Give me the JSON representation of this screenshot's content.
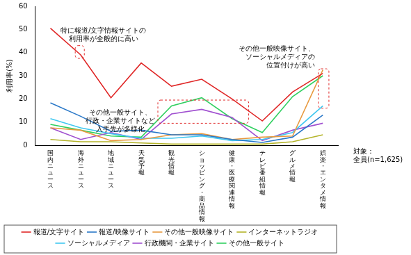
{
  "chart_data": {
    "type": "line",
    "y_label": "利用率(%)",
    "categories": [
      "国内ニュース",
      "海外ニュース",
      "地域ニュース",
      "天気予報",
      "観光情報",
      "ショッピング・商品情報",
      "健康・医療関連情報",
      "テレビ番組情報",
      "グルメ情報",
      "娯楽・エンタメ情報"
    ],
    "series": [
      {
        "name": "報道/文字サイト",
        "color": "#e02828",
        "values": [
          50.5,
          39,
          20.5,
          35.5,
          25.5,
          28.5,
          20,
          10.5,
          23,
          31
        ]
      },
      {
        "name": "報道/映像サイト",
        "color": "#2a78c8",
        "values": [
          18.3,
          12.5,
          6,
          6.5,
          4.5,
          4.5,
          2.5,
          1.2,
          3.5,
          13
        ]
      },
      {
        "name": "その他一般映像サイト",
        "color": "#e89a40",
        "values": [
          7.5,
          6.5,
          2,
          2.5,
          4.5,
          5,
          2.5,
          3.5,
          4,
          32.5
        ]
      },
      {
        "name": "インターネットラジオ",
        "color": "#b4b42a",
        "values": [
          2.5,
          1.5,
          1.5,
          1,
          0.5,
          0.5,
          0.5,
          0.5,
          1.5,
          4.5
        ]
      },
      {
        "name": "ソーシャルメディア",
        "color": "#40c8f0",
        "values": [
          11.5,
          7.5,
          5,
          3,
          3,
          4,
          2,
          2.5,
          5.5,
          17
        ]
      },
      {
        "name": "行政機関・企業サイト",
        "color": "#a050d0",
        "values": [
          7.5,
          2.5,
          5.5,
          2.5,
          13.5,
          15.5,
          12,
          2,
          6.5,
          9.5
        ]
      },
      {
        "name": "その他一般サイト",
        "color": "#30d060",
        "values": [
          9,
          6.5,
          4,
          3.5,
          17,
          20.5,
          11.5,
          5.5,
          21,
          30
        ]
      }
    ],
    "ylim": [
      0,
      60
    ],
    "yticks": [
      0,
      10,
      20,
      30,
      40,
      50,
      60
    ],
    "grid": false,
    "legend": "bottom",
    "annotations": [
      {
        "lines": [
          "特に報道/文字情報サイトの",
          "利用率が全般的に高い"
        ]
      },
      {
        "lines": [
          "その他一般サイト、",
          "行政・企業サイトなど",
          "入手先が多様化"
        ]
      },
      {
        "lines": [
          "その他一般映像サイト、",
          "ソーシャルメディアの",
          "位置付けが高い"
        ]
      },
      {
        "lines": [
          "対象：",
          "全員(n=1,625)"
        ]
      }
    ]
  }
}
